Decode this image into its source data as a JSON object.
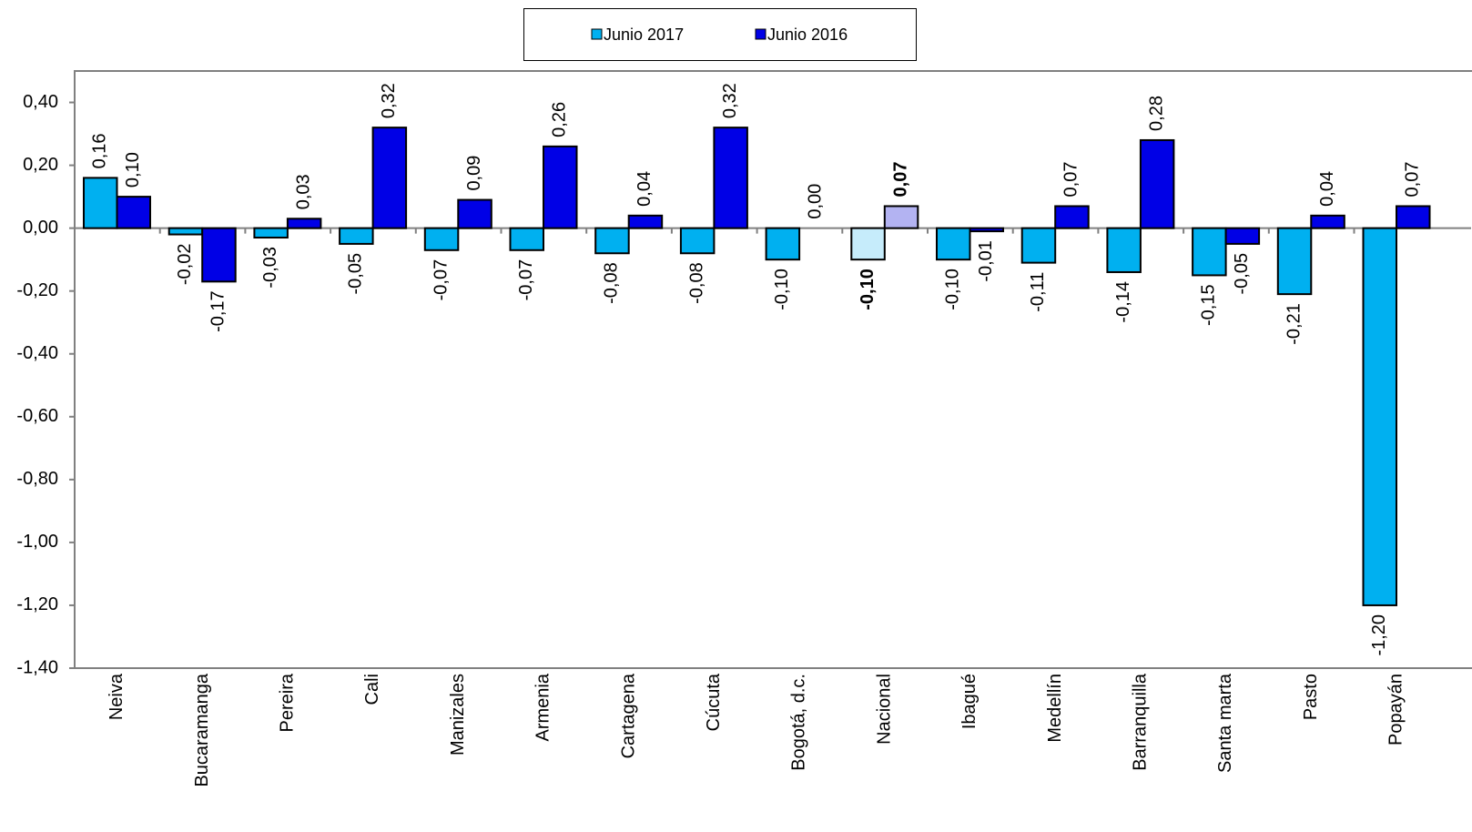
{
  "chart_data": {
    "type": "bar",
    "categories": [
      "Neiva",
      "Bucaramanga",
      "Pereira",
      "Cali",
      "Manizales",
      "Armenia",
      "Cartagena",
      "Cúcuta",
      "Bogotá, d.c.",
      "Nacional",
      "Ibagué",
      "Medellín",
      "Barranquilla",
      "Santa marta",
      "Pasto",
      "Popayán"
    ],
    "highlight": "Nacional",
    "series": [
      {
        "name": "Junio 2017",
        "color": "#00b0f0",
        "highlight_color": "#c6ecfb",
        "values": [
          0.16,
          -0.02,
          -0.03,
          -0.05,
          -0.07,
          -0.07,
          -0.08,
          -0.08,
          -0.1,
          -0.1,
          -0.1,
          -0.11,
          -0.14,
          -0.15,
          -0.21,
          -1.2
        ],
        "value_labels": [
          "0,16",
          "-0,02",
          "-0,03",
          "-0,05",
          "-0,07",
          "-0,07",
          "-0,08",
          "-0,08",
          "-0,10",
          "-0,10",
          "-0,10",
          "-0,11",
          "-0,14",
          "-0,15",
          "-0,21",
          "-1,20"
        ]
      },
      {
        "name": "Junio 2016",
        "color": "#0000e6",
        "highlight_color": "#b3b3f2",
        "values": [
          0.1,
          -0.17,
          0.03,
          0.32,
          0.09,
          0.26,
          0.04,
          0.32,
          0.0,
          0.07,
          -0.01,
          0.07,
          0.28,
          -0.05,
          0.04,
          0.07
        ],
        "value_labels": [
          "0,10",
          "-0,17",
          "0,03",
          "0,32",
          "0,09",
          "0,26",
          "0,04",
          "0,32",
          "0,00",
          "0,07",
          "-0,01",
          "0,07",
          "0,28",
          "-0,05",
          "0,04",
          "0,07"
        ]
      }
    ],
    "ylim": [
      -1.4,
      0.5
    ],
    "yticks": [
      {
        "value": -1.4,
        "label": "-1,40"
      },
      {
        "value": -1.2,
        "label": "-1,20"
      },
      {
        "value": -1.0,
        "label": "-1,00"
      },
      {
        "value": -0.8,
        "label": "-0,80"
      },
      {
        "value": -0.6,
        "label": "-0,60"
      },
      {
        "value": -0.4,
        "label": "-0,40"
      },
      {
        "value": -0.2,
        "label": "-0,20"
      },
      {
        "value": 0,
        "label": "0,00"
      },
      {
        "value": 0.2,
        "label": "0,20"
      },
      {
        "value": 0.4,
        "label": "0,40"
      }
    ],
    "grid": false,
    "legend": "top"
  }
}
